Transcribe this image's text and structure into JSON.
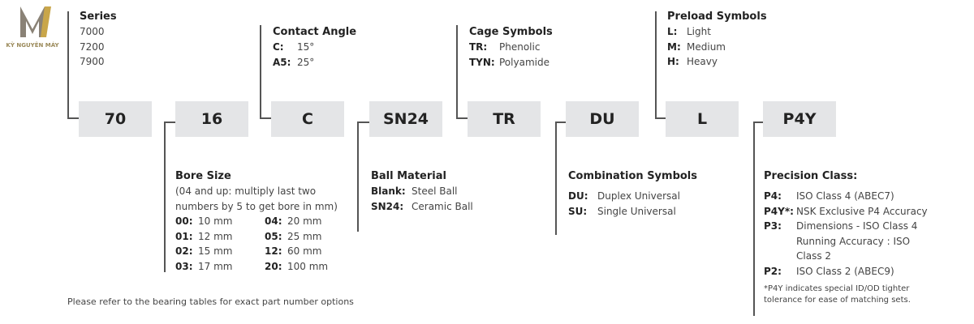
{
  "logo": {
    "text": "KỲ NGUYÊN MÁY"
  },
  "boxes": [
    "70",
    "16",
    "C",
    "SN24",
    "TR",
    "DU",
    "L",
    "P4Y"
  ],
  "series": {
    "title": "Series",
    "items": [
      "7000",
      "7200",
      "7900"
    ]
  },
  "contact_angle": {
    "title": "Contact Angle",
    "items": [
      {
        "k": "C:",
        "v": "15°"
      },
      {
        "k": "A5:",
        "v": "25°"
      }
    ]
  },
  "cage": {
    "title": "Cage Symbols",
    "items": [
      {
        "k": "TR:",
        "v": "Phenolic"
      },
      {
        "k": "TYN:",
        "v": "Polyamide"
      }
    ]
  },
  "preload": {
    "title": "Preload Symbols",
    "items": [
      {
        "k": "L:",
        "v": "Light"
      },
      {
        "k": "M:",
        "v": "Medium"
      },
      {
        "k": "H:",
        "v": "Heavy"
      }
    ]
  },
  "bore": {
    "title": "Bore Size",
    "desc1": "(04 and up: multiply last two",
    "desc2": "numbers by 5 to get bore in mm)",
    "items": [
      {
        "k": "00:",
        "v": "10 mm"
      },
      {
        "k": "04:",
        "v": "20 mm"
      },
      {
        "k": "01:",
        "v": "12 mm"
      },
      {
        "k": "05:",
        "v": "25 mm"
      },
      {
        "k": "02:",
        "v": "15 mm"
      },
      {
        "k": "12:",
        "v": "60 mm"
      },
      {
        "k": "03:",
        "v": "17 mm"
      },
      {
        "k": "20:",
        "v": "100 mm"
      }
    ]
  },
  "ball": {
    "title": "Ball Material",
    "items": [
      {
        "k": "Blank:",
        "v": "Steel Ball"
      },
      {
        "k": "SN24:",
        "v": "Ceramic Ball"
      }
    ]
  },
  "combination": {
    "title": "Combination Symbols",
    "items": [
      {
        "k": "DU:",
        "v": "Duplex Universal"
      },
      {
        "k": "SU:",
        "v": "Single Universal"
      }
    ]
  },
  "precision": {
    "title": "Precision Class:",
    "items": [
      {
        "k": "P4:",
        "v": "ISO Class 4 (ABEC7)"
      },
      {
        "k": "P4Y*:",
        "v": "NSK Exclusive P4 Accuracy"
      },
      {
        "k": "P3:",
        "v": "Dimensions - ISO Class 4"
      },
      {
        "k": "",
        "v": "Running Accuracy : ISO"
      },
      {
        "k": "",
        "v": "Class 2"
      },
      {
        "k": "P2:",
        "v": "ISO Class 2 (ABEC9)"
      }
    ],
    "note1": "*P4Y indicates special ID/OD tighter",
    "note2": "tolerance for ease of matching sets."
  },
  "footer": "Please refer to the bearing tables for exact part number options"
}
